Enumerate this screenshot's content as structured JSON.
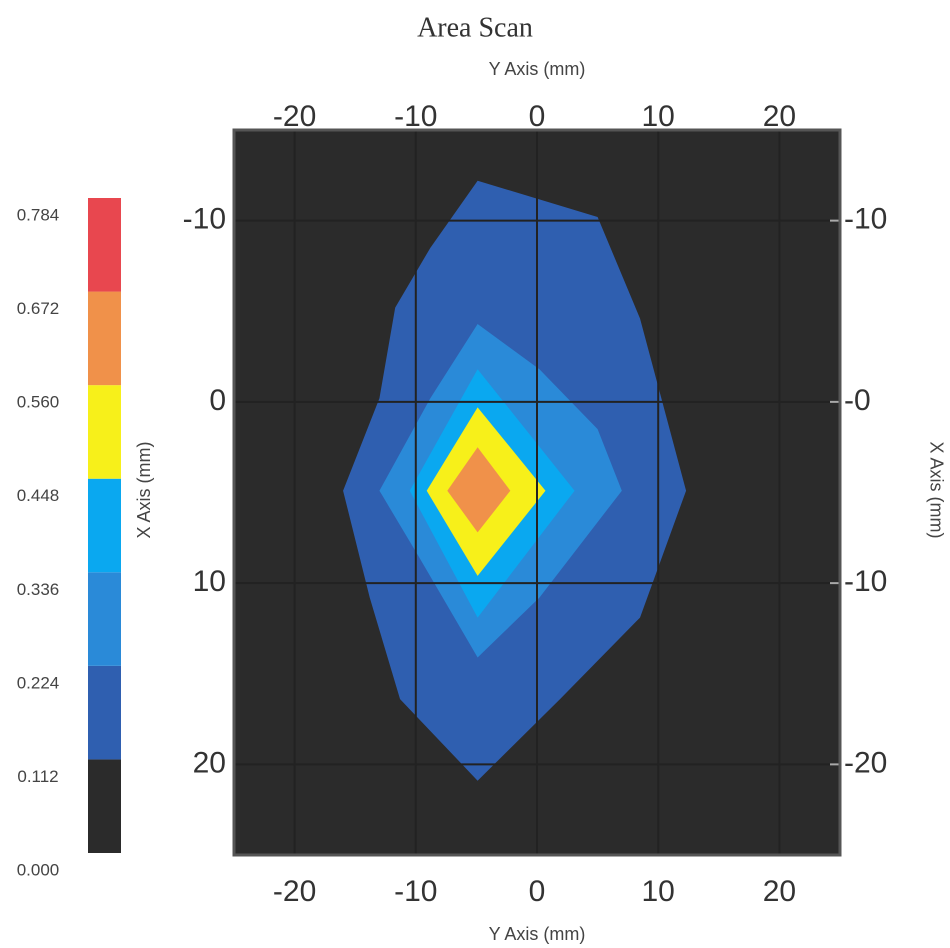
{
  "chart_data": {
    "type": "contour",
    "title": "Area Scan",
    "xlabel": "Y Axis (mm)",
    "ylabel": "X Axis (mm)",
    "xlim": [
      -25,
      25
    ],
    "xticks": [
      -20,
      -10,
      0,
      10,
      20
    ],
    "ylim": [
      25,
      -15
    ],
    "yticks": [
      -10,
      0,
      10,
      20
    ],
    "y2lim": [
      25,
      -15
    ],
    "y2ticks": [
      -10,
      {
        "value": 0,
        "label": "-0"
      },
      {
        "value": 10,
        "label": "-10"
      },
      {
        "value": 20,
        "label": "-20"
      }
    ],
    "grid": true,
    "levels": [
      {
        "value": 0,
        "label": "0.000"
      },
      {
        "value": 0.112,
        "label": "0.112"
      },
      {
        "value": 0.224,
        "label": "0.224"
      },
      {
        "value": 0.336,
        "label": "0.336"
      },
      {
        "value": 0.448,
        "label": "0.448"
      },
      {
        "value": 0.56,
        "label": "0.560"
      },
      {
        "value": 0.672,
        "label": "0.672"
      },
      {
        "value": 0.784,
        "label": "0.784"
      }
    ],
    "colors": [
      "#2b2b2b",
      "#2f5fb0",
      "#2a8ad8",
      "#0aa8f0",
      "#f7f01a",
      "#f0914a",
      "#e8474f"
    ],
    "contours": [
      {
        "level": 0.112,
        "x": [
          -4.9,
          5,
          8.5,
          12.3,
          8.5,
          1.9,
          -4.9,
          -11.3,
          -13.8,
          -16,
          -13,
          -11.7,
          -8.8
        ],
        "y": [
          -12.2,
          -10.2,
          -4.6,
          4.9,
          11.9,
          16.4,
          20.9,
          16.4,
          10.8,
          4.9,
          -0.2,
          -5.2,
          -8.5
        ]
      },
      {
        "level": 0.224,
        "x": [
          -4.9,
          0.2,
          5,
          7,
          0.2,
          -4.9,
          -9.7,
          -13,
          -8.8
        ],
        "y": [
          -4.3,
          -1.8,
          1.5,
          4.9,
          10.8,
          14.1,
          8.6,
          4.9,
          -0.2
        ]
      },
      {
        "level": 0.336,
        "x": [
          -4.9,
          3.1,
          -4.9,
          -10.5
        ],
        "y": [
          -1.8,
          4.9,
          11.9,
          4.9
        ]
      },
      {
        "level": 0.448,
        "x": [
          -4.9,
          0.7,
          -4.9,
          -9.1
        ],
        "y": [
          0.3,
          4.9,
          9.6,
          4.9
        ]
      },
      {
        "level": 0.56,
        "x": [
          -4.9,
          -2.2,
          -4.9,
          -7.4
        ],
        "y": [
          2.5,
          4.9,
          7.2,
          4.9
        ]
      }
    ]
  }
}
